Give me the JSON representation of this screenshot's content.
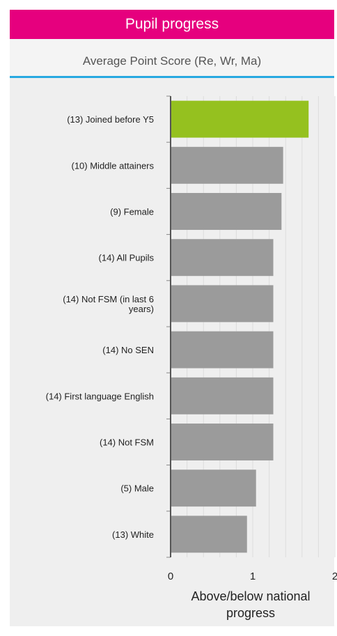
{
  "header": {
    "title": "Pupil progress"
  },
  "subtitle": "Average Point Score (Re, Wr, Ma)",
  "colors": {
    "header": "#e6007e",
    "rule": "#28a9e1",
    "highlight": "#95c11f",
    "bar": "#9b9b9b",
    "background": "#efefef"
  },
  "chart_data": {
    "type": "bar",
    "orientation": "horizontal",
    "categories": [
      [
        "(13) Joined before Y5"
      ],
      [
        "(10) Middle attainers"
      ],
      [
        "(9) Female"
      ],
      [
        "(14) All Pupils"
      ],
      [
        "(14) Not FSM (in last 6",
        "years)"
      ],
      [
        "(14) No SEN"
      ],
      [
        "(14) First language English"
      ],
      [
        "(14) Not FSM"
      ],
      [
        "(5) Male"
      ],
      [
        "(13) White"
      ]
    ],
    "values": [
      1.68,
      1.37,
      1.35,
      1.25,
      1.25,
      1.25,
      1.25,
      1.25,
      1.04,
      0.93
    ],
    "highlight_index": 0,
    "xlim": [
      0,
      2
    ],
    "xticks": [
      "0",
      "1",
      "2"
    ],
    "xlabel": [
      "Above/below national",
      "progress"
    ],
    "grid": true
  }
}
